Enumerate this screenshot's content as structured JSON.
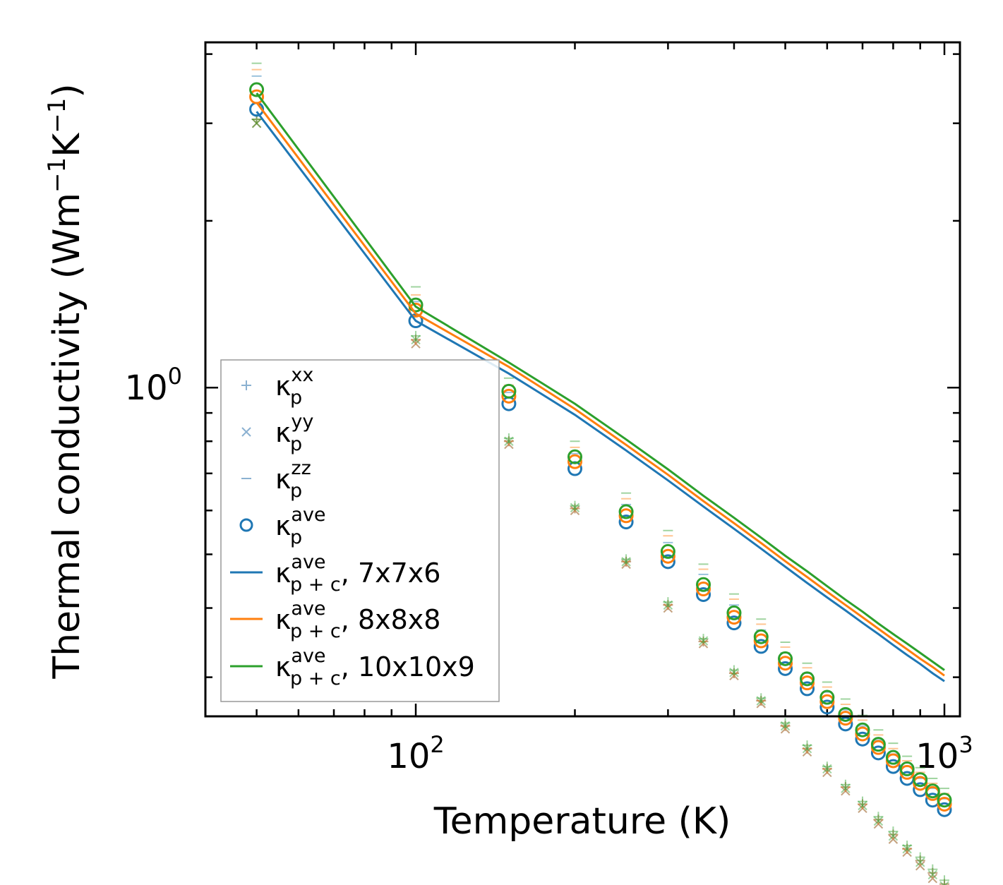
{
  "chart_data": {
    "type": "scatter",
    "scale": {
      "x": "log",
      "y": "log"
    },
    "xlabel": "Temperature (K)",
    "ylabel_parts": {
      "main": "Thermal conductivity (Wm",
      "sup1": "−1",
      "mid": "K",
      "sup2": "−1",
      "end": ")"
    },
    "xlim": [
      40,
      1070
    ],
    "ylim": [
      0.255,
      4.2
    ],
    "x_ticks": [
      {
        "value": 100,
        "base": "10",
        "exp": "2"
      },
      {
        "value": 1000,
        "base": "10",
        "exp": "3"
      }
    ],
    "y_ticks": [
      {
        "value": 1,
        "base": "10",
        "exp": "0"
      }
    ],
    "temperatures": [
      50,
      100,
      150,
      200,
      250,
      300,
      350,
      400,
      450,
      500,
      550,
      600,
      650,
      700,
      750,
      800,
      850,
      900,
      950,
      1000
    ],
    "grids": [
      {
        "name": "7x7x6",
        "color": "#1f77b4",
        "kxx": [
          3.05,
          1.22,
          0.8,
          0.605,
          0.485,
          0.405,
          0.348,
          0.305,
          0.272,
          0.245,
          0.223,
          0.205,
          0.19,
          0.177,
          0.166,
          0.156,
          0.147,
          0.14,
          0.133,
          0.127
        ],
        "kyy": [
          3.0,
          1.2,
          0.79,
          0.6,
          0.48,
          0.4,
          0.345,
          0.302,
          0.269,
          0.242,
          0.22,
          0.202,
          0.187,
          0.174,
          0.163,
          0.153,
          0.145,
          0.137,
          0.13,
          0.124
        ],
        "kzz": [
          3.65,
          1.43,
          0.98,
          0.76,
          0.615,
          0.525,
          0.46,
          0.405,
          0.365,
          0.332,
          0.305,
          0.282,
          0.262,
          0.245,
          0.231,
          0.218,
          0.207,
          0.197,
          0.189,
          0.181
        ],
        "kave": [
          3.18,
          1.32,
          0.935,
          0.714,
          0.572,
          0.485,
          0.423,
          0.376,
          0.341,
          0.311,
          0.286,
          0.265,
          0.247,
          0.232,
          0.219,
          0.207,
          0.197,
          0.188,
          0.18,
          0.173
        ],
        "kpc": [
          3.15,
          1.32,
          1.06,
          0.893,
          0.77,
          0.68,
          0.61,
          0.556,
          0.512,
          0.475,
          0.444,
          0.418,
          0.396,
          0.376,
          0.359,
          0.343,
          0.329,
          0.317,
          0.305,
          0.295
        ]
      },
      {
        "name": "8x8x8",
        "color": "#ff7f0e",
        "kxx": [
          3.05,
          1.22,
          0.8,
          0.605,
          0.485,
          0.405,
          0.348,
          0.305,
          0.272,
          0.245,
          0.223,
          0.205,
          0.19,
          0.177,
          0.166,
          0.156,
          0.147,
          0.14,
          0.133,
          0.127
        ],
        "kyy": [
          3.0,
          1.2,
          0.79,
          0.6,
          0.48,
          0.4,
          0.345,
          0.302,
          0.269,
          0.242,
          0.22,
          0.202,
          0.187,
          0.174,
          0.163,
          0.153,
          0.145,
          0.137,
          0.13,
          0.124
        ],
        "kzz": [
          3.75,
          1.47,
          1.01,
          0.78,
          0.63,
          0.54,
          0.47,
          0.415,
          0.374,
          0.34,
          0.312,
          0.288,
          0.268,
          0.251,
          0.236,
          0.223,
          0.212,
          0.202,
          0.193,
          0.185
        ],
        "kave": [
          3.35,
          1.38,
          0.965,
          0.735,
          0.587,
          0.496,
          0.433,
          0.385,
          0.349,
          0.318,
          0.293,
          0.271,
          0.253,
          0.237,
          0.224,
          0.212,
          0.202,
          0.193,
          0.185,
          0.177
        ],
        "kpc": [
          3.27,
          1.36,
          1.09,
          0.915,
          0.788,
          0.696,
          0.624,
          0.569,
          0.524,
          0.486,
          0.455,
          0.428,
          0.405,
          0.385,
          0.367,
          0.351,
          0.337,
          0.324,
          0.313,
          0.302
        ]
      },
      {
        "name": "10x10x9",
        "color": "#2ca02c",
        "kxx": [
          3.05,
          1.24,
          0.81,
          0.612,
          0.49,
          0.41,
          0.352,
          0.309,
          0.275,
          0.248,
          0.226,
          0.207,
          0.192,
          0.179,
          0.168,
          0.158,
          0.149,
          0.142,
          0.135,
          0.129
        ],
        "kyy": [
          3.0,
          1.22,
          0.8,
          0.607,
          0.485,
          0.405,
          0.349,
          0.306,
          0.272,
          0.245,
          0.223,
          0.205,
          0.189,
          0.176,
          0.165,
          0.155,
          0.147,
          0.139,
          0.132,
          0.126
        ],
        "kzz": [
          3.85,
          1.52,
          1.04,
          0.8,
          0.645,
          0.552,
          0.48,
          0.424,
          0.382,
          0.347,
          0.318,
          0.294,
          0.274,
          0.256,
          0.241,
          0.228,
          0.216,
          0.206,
          0.197,
          0.189
        ],
        "kave": [
          3.45,
          1.41,
          0.985,
          0.75,
          0.597,
          0.506,
          0.441,
          0.392,
          0.355,
          0.324,
          0.298,
          0.276,
          0.257,
          0.241,
          0.227,
          0.215,
          0.205,
          0.196,
          0.187,
          0.18
        ],
        "kpc": [
          3.4,
          1.4,
          1.11,
          0.935,
          0.806,
          0.712,
          0.638,
          0.582,
          0.536,
          0.497,
          0.466,
          0.438,
          0.414,
          0.394,
          0.375,
          0.359,
          0.345,
          0.332,
          0.32,
          0.309
        ]
      }
    ],
    "legend": {
      "position": "lower-left",
      "base": "κ",
      "entries": [
        {
          "name": "kxx",
          "marker": "+",
          "color": "#6e9ec6",
          "sup": "xx",
          "sub": "p",
          "suffix": ""
        },
        {
          "name": "kyy",
          "marker": "x",
          "color": "#6e9ec6",
          "sup": "yy",
          "sub": "p",
          "suffix": ""
        },
        {
          "name": "kzz",
          "marker": "_",
          "color": "#6e9ec6",
          "sup": "zz",
          "sub": "p",
          "suffix": ""
        },
        {
          "name": "kave",
          "marker": "o",
          "color": "#1f77b4",
          "sup": "ave",
          "sub": "p",
          "suffix": ""
        },
        {
          "name": "kpc-7x7x6",
          "marker": "line",
          "color": "#1f77b4",
          "sup": "ave",
          "sub": "p + c",
          "suffix": ", 7x7x6"
        },
        {
          "name": "kpc-8x8x8",
          "marker": "line",
          "color": "#ff7f0e",
          "sup": "ave",
          "sub": "p + c",
          "suffix": ", 8x8x8"
        },
        {
          "name": "kpc-10x10x9",
          "marker": "line",
          "color": "#2ca02c",
          "sup": "ave",
          "sub": "p + c",
          "suffix": ", 10x10x9"
        }
      ]
    }
  }
}
